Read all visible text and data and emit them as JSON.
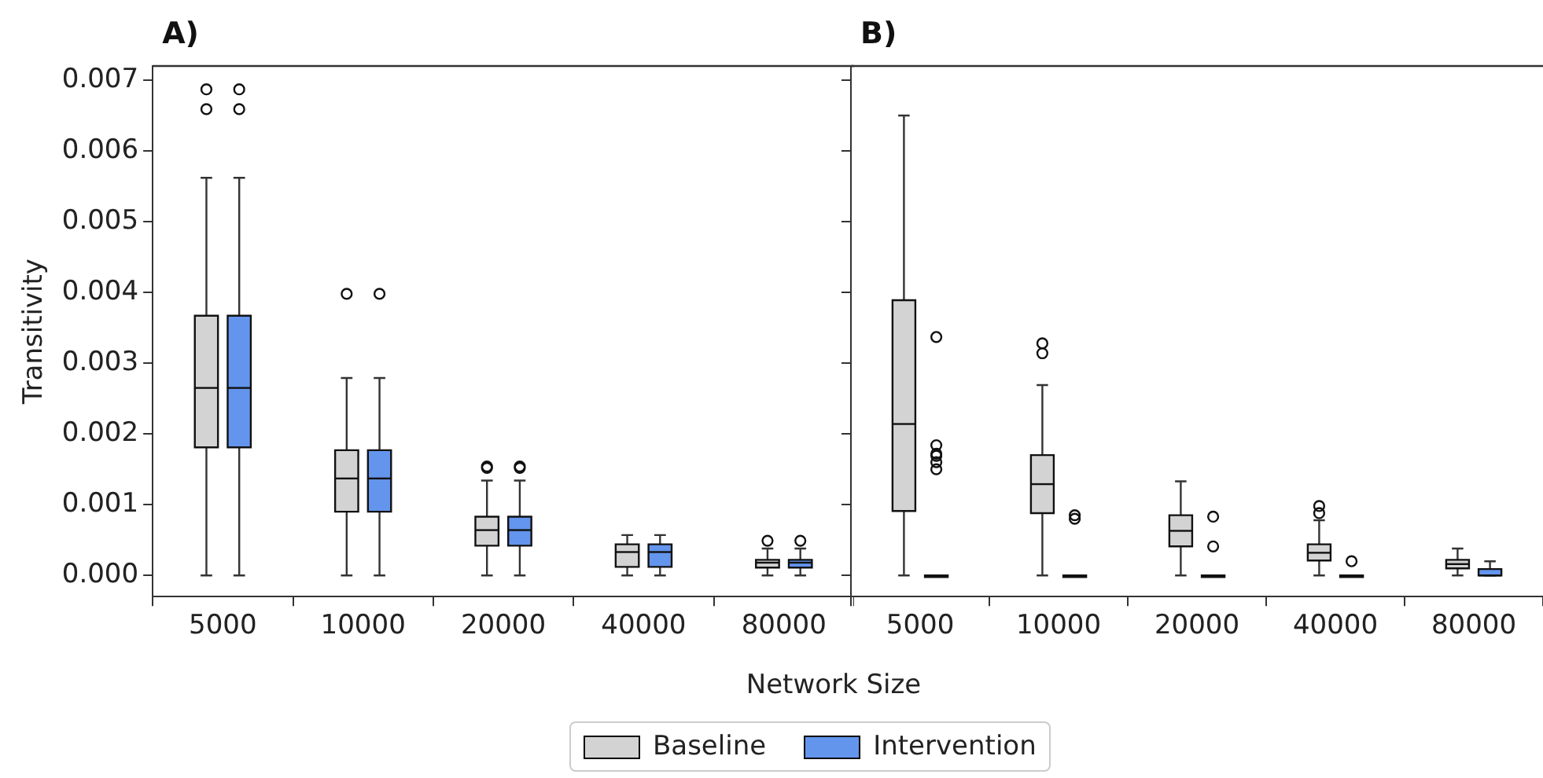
{
  "chart_data": [
    {
      "type": "box",
      "title": "A)",
      "ylabel": "Transitivity",
      "xlabel": "Network Size",
      "legend": "bottom",
      "categories": [
        "5000",
        "10000",
        "20000",
        "40000",
        "80000"
      ],
      "ylim": [
        -0.0003,
        0.0072
      ],
      "yticks": [
        {
          "value": 0,
          "label": "0.000"
        },
        0.001,
        0.002,
        0.003,
        0.004,
        0.005,
        0.006,
        0.007
      ],
      "series": [
        {
          "name": "Baseline",
          "color": "#d3d3d3",
          "boxes": [
            {
              "low": 0,
              "q1": 0.00181,
              "median": 0.00265,
              "q3": 0.00367,
              "high": 0.00562,
              "outliers": [
                0.00659,
                0.00687
              ]
            },
            {
              "low": 0,
              "q1": 0.0009,
              "median": 0.00137,
              "q3": 0.00177,
              "high": 0.00279,
              "outliers": [
                0.00398
              ]
            },
            {
              "low": 0,
              "q1": 0.00042,
              "median": 0.00064,
              "q3": 0.00083,
              "high": 0.00134,
              "outliers": [
                0.00152,
                0.00154
              ]
            },
            {
              "low": 0,
              "q1": 0.00012,
              "median": 0.00033,
              "q3": 0.00044,
              "high": 0.00057
            },
            {
              "low": 0,
              "q1": 0.00011,
              "median": 0.00018,
              "q3": 0.00022,
              "high": 0.00038,
              "outliers": [
                0.00049
              ]
            }
          ]
        },
        {
          "name": "Intervention",
          "color": "#6495ed",
          "boxes": [
            {
              "low": 0,
              "q1": 0.00181,
              "median": 0.00265,
              "q3": 0.00367,
              "high": 0.00562,
              "outliers": [
                0.00659,
                0.00687
              ]
            },
            {
              "low": 0,
              "q1": 0.0009,
              "median": 0.00137,
              "q3": 0.00177,
              "high": 0.00279,
              "outliers": [
                0.00398
              ]
            },
            {
              "low": 0,
              "q1": 0.00042,
              "median": 0.00064,
              "q3": 0.00083,
              "high": 0.00134,
              "outliers": [
                0.00152,
                0.00154
              ]
            },
            {
              "low": 0,
              "q1": 0.00012,
              "median": 0.00033,
              "q3": 0.00044,
              "high": 0.00057
            },
            {
              "low": 0,
              "q1": 0.00011,
              "median": 0.00018,
              "q3": 0.00022,
              "high": 0.00038,
              "outliers": [
                0.00049
              ]
            }
          ]
        }
      ]
    },
    {
      "type": "box",
      "title": "B)",
      "categories": [
        "5000",
        "10000",
        "20000",
        "40000",
        "80000"
      ],
      "ylim": [
        -0.0003,
        0.0072
      ],
      "yticks": [
        0,
        0.001,
        0.002,
        0.003,
        0.004,
        0.005,
        0.006,
        0.007
      ],
      "tick_labels": "x",
      "series": [
        {
          "color": "#d3d3d3",
          "boxes": [
            {
              "low": 0,
              "q1": 0.00091,
              "median": 0.00214,
              "q3": 0.00389,
              "high": 0.0065
            },
            {
              "low": 0,
              "q1": 0.00088,
              "median": 0.00129,
              "q3": 0.0017,
              "high": 0.00269,
              "outliers": [
                0.00314,
                0.00328
              ]
            },
            {
              "low": 0,
              "q1": 0.00041,
              "median": 0.00063,
              "q3": 0.00085,
              "high": 0.00133
            },
            {
              "low": 0,
              "q1": 0.00021,
              "median": 0.00032,
              "q3": 0.00044,
              "high": 0.00078,
              "outliers": [
                0.00088,
                0.00098
              ]
            },
            {
              "low": 0,
              "q1": 0.0001,
              "median": 0.00016,
              "q3": 0.00022,
              "high": 0.00038
            }
          ]
        },
        {
          "color": "#6495ed",
          "boxes": [
            {
              "low": 0,
              "q1": 0,
              "median": 0,
              "q3": 0,
              "high": 0,
              "outliers": [
                0.0015,
                0.0016,
                0.00169,
                0.00172,
                0.00184,
                0.00337
              ]
            },
            {
              "low": 0,
              "q1": 0,
              "median": 0,
              "q3": 0,
              "high": 0,
              "outliers": [
                0.0008,
                0.00085
              ]
            },
            {
              "low": 0,
              "q1": 0,
              "median": 0,
              "q3": 0,
              "high": 0,
              "outliers": [
                0.00041,
                0.00083
              ]
            },
            {
              "low": 0,
              "q1": 0,
              "median": 0,
              "q3": 0,
              "high": 0,
              "outliers": [
                0.0002
              ]
            },
            {
              "low": 0,
              "q1": 0,
              "median": 0,
              "q3": 9e-05,
              "high": 0.0002
            }
          ]
        }
      ]
    }
  ]
}
